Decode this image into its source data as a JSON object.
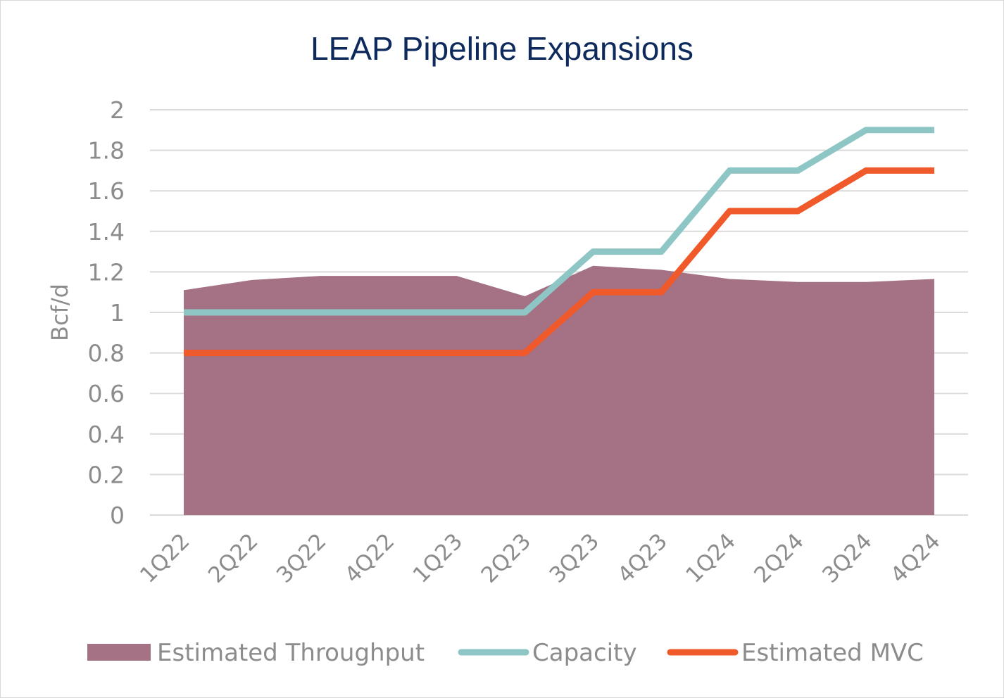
{
  "chart_data": {
    "type": "area",
    "title": "LEAP Pipeline Expansions",
    "xlabel": "",
    "ylabel": "Bcf/d",
    "ylim": [
      0,
      2
    ],
    "yticks": [
      "0",
      "0.2",
      "0.4",
      "0.6",
      "0.8",
      "1",
      "1.2",
      "1.4",
      "1.6",
      "1.8",
      "2"
    ],
    "categories": [
      "1Q22",
      "2Q22",
      "3Q22",
      "4Q22",
      "1Q23",
      "2Q23",
      "3Q23",
      "4Q23",
      "1Q24",
      "2Q24",
      "3Q24",
      "4Q24"
    ],
    "grid": true,
    "legend_position": "bottom",
    "series": [
      {
        "name": "Estimated Throughput",
        "kind": "area",
        "color": "#a47185",
        "values": [
          1.11,
          1.16,
          1.18,
          1.18,
          1.18,
          1.08,
          1.23,
          1.21,
          1.165,
          1.15,
          1.15,
          1.165
        ]
      },
      {
        "name": "Capacity",
        "kind": "line",
        "color": "#8ec6c5",
        "values": [
          1.0,
          1.0,
          1.0,
          1.0,
          1.0,
          1.0,
          1.3,
          1.3,
          1.7,
          1.7,
          1.9,
          1.9
        ]
      },
      {
        "name": "Estimated MVC",
        "kind": "line",
        "color": "#f05a2a",
        "values": [
          0.8,
          0.8,
          0.8,
          0.8,
          0.8,
          0.8,
          1.1,
          1.1,
          1.5,
          1.5,
          1.7,
          1.7
        ]
      }
    ]
  }
}
